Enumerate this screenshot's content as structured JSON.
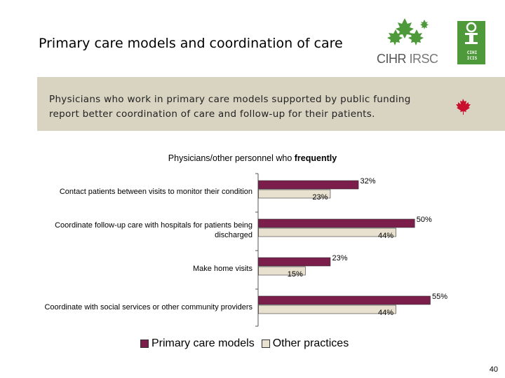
{
  "slide": {
    "title": "Primary care models and coordination of care",
    "callout": "Physicians who work in primary care models supported by public funding report better coordination of care and follow-up for their patients.",
    "page_number": "40"
  },
  "logos": {
    "cihr": "CIHR",
    "irsc": "IRSC",
    "ici_lines": [
      "CIHI",
      "ICIS"
    ]
  },
  "colors": {
    "primary": "#7b1e4b",
    "other": "#e8e1cf",
    "callout_bg": "#d9d3c2",
    "maple": "#c8102e"
  },
  "chart_data": {
    "type": "bar",
    "orientation": "horizontal",
    "title_prefix": "Physicians/other personnel who ",
    "title_bold": "frequently",
    "categories": [
      "Contact patients between visits to monitor their condition",
      "Coordinate follow-up care with hospitals for patients being discharged",
      "Make home visits",
      "Coordinate with social services or other community providers"
    ],
    "series": [
      {
        "name": "Primary care models",
        "values": [
          32,
          50,
          23,
          55
        ],
        "labels": [
          "32%",
          "50%",
          "23%",
          "55%"
        ]
      },
      {
        "name": "Other practices",
        "values": [
          23,
          44,
          15,
          44
        ],
        "labels": [
          "23%",
          "44%",
          "15%",
          "44%"
        ]
      }
    ],
    "xlim": [
      0,
      55
    ],
    "legend": "bottom"
  }
}
